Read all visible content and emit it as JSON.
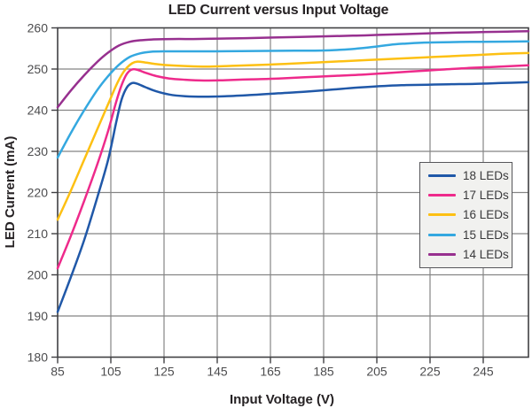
{
  "chart_data": {
    "type": "line",
    "title": "LED Current versus Input Voltage",
    "xlabel": "Input Voltage (V)",
    "ylabel": "LED Current (mA)",
    "xlim": [
      85,
      262
    ],
    "ylim": [
      180,
      260
    ],
    "x_ticks": [
      85,
      105,
      125,
      145,
      165,
      185,
      205,
      225,
      245
    ],
    "y_ticks": [
      180,
      190,
      200,
      210,
      220,
      230,
      240,
      250,
      260
    ],
    "grid": true,
    "legend_position": "middle-right",
    "colors": {
      "grid": "#858585",
      "frame": "#404043",
      "tick_text": "#4c4c4e",
      "title_text": "#262224",
      "legend_bg": "#f1f1ef",
      "legend_border": "#56565a"
    },
    "series": [
      {
        "name": "18 LEDs",
        "color": "#2058a8",
        "points": [
          [
            85,
            191.0
          ],
          [
            90,
            199.5
          ],
          [
            95,
            208.5
          ],
          [
            100,
            219.0
          ],
          [
            104,
            228.0
          ],
          [
            107,
            237.0
          ],
          [
            109,
            242.5
          ],
          [
            111,
            245.5
          ],
          [
            113,
            246.6
          ],
          [
            115,
            246.4
          ],
          [
            118,
            245.6
          ],
          [
            122,
            244.6
          ],
          [
            127,
            243.8
          ],
          [
            133,
            243.4
          ],
          [
            140,
            243.3
          ],
          [
            148,
            243.4
          ],
          [
            158,
            243.7
          ],
          [
            168,
            244.1
          ],
          [
            178,
            244.5
          ],
          [
            188,
            245.0
          ],
          [
            198,
            245.5
          ],
          [
            208,
            245.9
          ],
          [
            216,
            246.1
          ],
          [
            224,
            246.2
          ],
          [
            232,
            246.3
          ],
          [
            242,
            246.4
          ],
          [
            252,
            246.6
          ],
          [
            262,
            246.8
          ]
        ]
      },
      {
        "name": "17 LEDs",
        "color": "#ee2a8b",
        "points": [
          [
            85,
            201.6
          ],
          [
            90,
            209.5
          ],
          [
            95,
            218.0
          ],
          [
            100,
            227.0
          ],
          [
            104,
            235.0
          ],
          [
            107,
            242.0
          ],
          [
            109,
            246.0
          ],
          [
            111,
            248.8
          ],
          [
            113,
            249.9
          ],
          [
            115,
            249.8
          ],
          [
            118,
            249.1
          ],
          [
            122,
            248.3
          ],
          [
            127,
            247.7
          ],
          [
            133,
            247.4
          ],
          [
            140,
            247.2
          ],
          [
            148,
            247.3
          ],
          [
            158,
            247.5
          ],
          [
            168,
            247.7
          ],
          [
            178,
            248.0
          ],
          [
            188,
            248.3
          ],
          [
            198,
            248.6
          ],
          [
            208,
            249.0
          ],
          [
            218,
            249.4
          ],
          [
            228,
            249.8
          ],
          [
            238,
            250.2
          ],
          [
            248,
            250.5
          ],
          [
            262,
            250.9
          ]
        ]
      },
      {
        "name": "16 LEDs",
        "color": "#fdc013",
        "points": [
          [
            85,
            213.4
          ],
          [
            90,
            220.5
          ],
          [
            95,
            228.0
          ],
          [
            100,
            235.5
          ],
          [
            104,
            241.5
          ],
          [
            107,
            246.0
          ],
          [
            109,
            248.5
          ],
          [
            111,
            250.3
          ],
          [
            113,
            251.4
          ],
          [
            115,
            251.8
          ],
          [
            118,
            251.6
          ],
          [
            122,
            251.2
          ],
          [
            127,
            250.9
          ],
          [
            134,
            250.7
          ],
          [
            142,
            250.6
          ],
          [
            152,
            250.8
          ],
          [
            162,
            251.0
          ],
          [
            172,
            251.3
          ],
          [
            182,
            251.6
          ],
          [
            192,
            251.9
          ],
          [
            202,
            252.2
          ],
          [
            212,
            252.5
          ],
          [
            222,
            252.8
          ],
          [
            232,
            253.1
          ],
          [
            242,
            253.4
          ],
          [
            252,
            253.7
          ],
          [
            262,
            253.9
          ]
        ]
      },
      {
        "name": "15 LEDs",
        "color": "#34a8e0",
        "points": [
          [
            85,
            228.5
          ],
          [
            90,
            234.5
          ],
          [
            95,
            240.0
          ],
          [
            100,
            245.0
          ],
          [
            104,
            248.3
          ],
          [
            108,
            251.0
          ],
          [
            112,
            252.9
          ],
          [
            116,
            253.8
          ],
          [
            120,
            254.2
          ],
          [
            126,
            254.3
          ],
          [
            134,
            254.3
          ],
          [
            144,
            254.3
          ],
          [
            154,
            254.35
          ],
          [
            164,
            254.4
          ],
          [
            174,
            254.45
          ],
          [
            184,
            254.5
          ],
          [
            192,
            254.7
          ],
          [
            198,
            255.0
          ],
          [
            204,
            255.4
          ],
          [
            210,
            255.9
          ],
          [
            216,
            256.2
          ],
          [
            222,
            256.4
          ],
          [
            230,
            256.5
          ],
          [
            240,
            256.6
          ],
          [
            250,
            256.65
          ],
          [
            262,
            256.7
          ]
        ]
      },
      {
        "name": "14 LEDs",
        "color": "#97308f",
        "points": [
          [
            85,
            240.7
          ],
          [
            90,
            244.8
          ],
          [
            95,
            248.5
          ],
          [
            100,
            251.8
          ],
          [
            104,
            254.0
          ],
          [
            108,
            255.7
          ],
          [
            112,
            256.6
          ],
          [
            116,
            257.0
          ],
          [
            121,
            257.2
          ],
          [
            128,
            257.3
          ],
          [
            136,
            257.3
          ],
          [
            146,
            257.4
          ],
          [
            156,
            257.5
          ],
          [
            166,
            257.65
          ],
          [
            176,
            257.8
          ],
          [
            186,
            257.95
          ],
          [
            196,
            258.1
          ],
          [
            206,
            258.3
          ],
          [
            216,
            258.5
          ],
          [
            226,
            258.7
          ],
          [
            236,
            258.85
          ],
          [
            246,
            259.0
          ],
          [
            254,
            259.1
          ],
          [
            262,
            259.2
          ]
        ]
      }
    ]
  }
}
